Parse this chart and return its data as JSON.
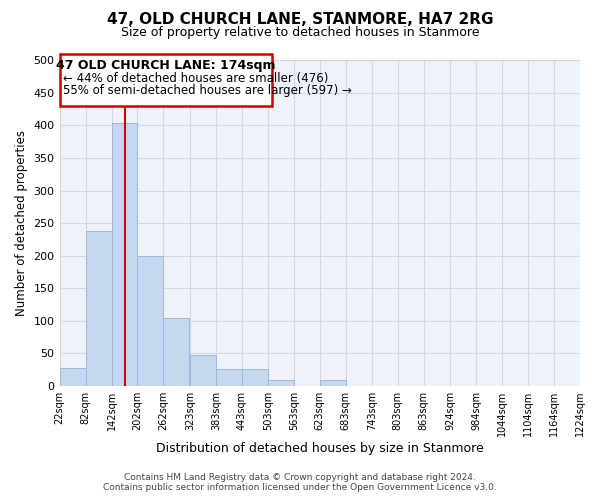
{
  "title": "47, OLD CHURCH LANE, STANMORE, HA7 2RG",
  "subtitle": "Size of property relative to detached houses in Stanmore",
  "xlabel": "Distribution of detached houses by size in Stanmore",
  "ylabel": "Number of detached properties",
  "bar_color": "#c5d8f0",
  "bar_edge_color": "#a0b8d8",
  "grid_color": "#d0d8e8",
  "background_color": "#eef2fa",
  "bin_edges": [
    22,
    82,
    142,
    202,
    262,
    323,
    383,
    443,
    503,
    563,
    623,
    683,
    743,
    803,
    863,
    924,
    984,
    1044,
    1104,
    1164,
    1224
  ],
  "bin_labels": [
    "22sqm",
    "82sqm",
    "142sqm",
    "202sqm",
    "262sqm",
    "323sqm",
    "383sqm",
    "443sqm",
    "503sqm",
    "563sqm",
    "623sqm",
    "683sqm",
    "743sqm",
    "803sqm",
    "863sqm",
    "924sqm",
    "984sqm",
    "1044sqm",
    "1104sqm",
    "1164sqm",
    "1224sqm"
  ],
  "bar_heights": [
    27,
    238,
    403,
    199,
    105,
    48,
    26,
    26,
    10,
    0,
    10,
    0,
    0,
    0,
    0,
    0,
    0,
    0,
    0,
    0
  ],
  "red_line_x": 174,
  "annotation_title": "47 OLD CHURCH LANE: 174sqm",
  "annotation_line1": "← 44% of detached houses are smaller (476)",
  "annotation_line2": "55% of semi-detached houses are larger (597) →",
  "annotation_box_color": "#ffffff",
  "annotation_box_edge": "#cc0000",
  "red_line_color": "#cc0000",
  "ylim": [
    0,
    500
  ],
  "yticks": [
    0,
    50,
    100,
    150,
    200,
    250,
    300,
    350,
    400,
    450,
    500
  ],
  "footer_line1": "Contains HM Land Registry data © Crown copyright and database right 2024.",
  "footer_line2": "Contains public sector information licensed under the Open Government Licence v3.0."
}
